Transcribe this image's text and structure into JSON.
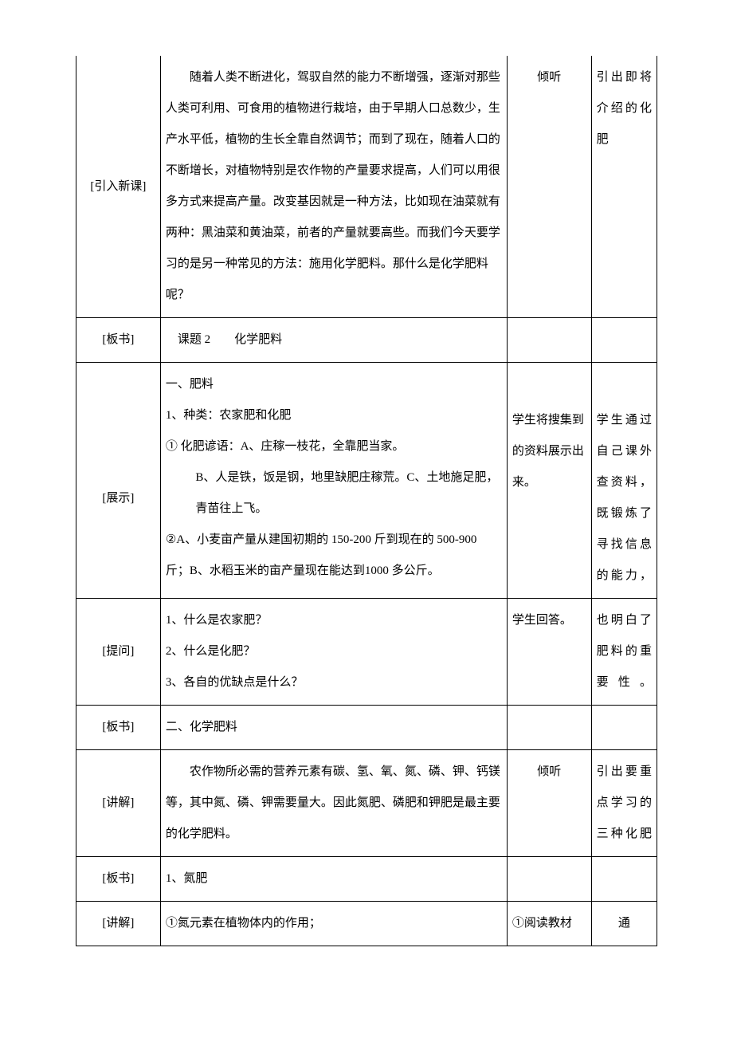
{
  "rows": [
    {
      "label": "[引入新课]",
      "content_paragraphs": [
        "随着人类不断进化，驾驭自然的能力不断增强，逐渐对那些人类可利用、可食用的植物进行栽培，由于早期人口总数少，生产水平低，植物的生长全靠自然调节；而到了现在，随着人口的不断增长，对植物特别是农作物的产量要求提高，人们可以用很多方式来提高产量。改变基因就是一种方法，比如现在油菜就有两种：黑油菜和黄油菜，前者的产量就要高些。而我们今天要学习的是另一种常见的方法：施用化学肥料。那什么是化学肥料呢？"
      ],
      "col3": "倾听",
      "col4": "引出即将介绍的化肥"
    },
    {
      "label": "[板书]",
      "content_title": "课题 2　　化学肥料"
    },
    {
      "label": "[展示]",
      "heading": "一、肥料",
      "line1": "1、种类：农家肥和化肥",
      "line2": "① 化肥谚语：A、庄稼一枝花，全靠肥当家。",
      "line3": "B、人是铁，饭是钢，地里缺肥庄稼荒。C、土地施足肥，青苗往上飞。",
      "line4": "②A、小麦亩产量从建国初期的 150-200 斤到现在的 500-900 斤；B、水稻玉米的亩产量现在能达到1000 多公斤。",
      "col3": "学生将搜集到的资料展示出来。",
      "col4": "学生通过自己课外查资料，既锻炼了寻找信息的能力，"
    },
    {
      "label": "[提问]",
      "q1": "1、什么是农家肥？",
      "q2": "2、什么是化肥？",
      "q3": "3、各自的优缺点是什么？",
      "col3": "学生回答。",
      "col4": "也明白了肥料的重要性。"
    },
    {
      "label": "[板书]",
      "content": "二、化学肥料"
    },
    {
      "label": "[讲解]",
      "content": "农作物所必需的营养元素有碳、氢、氧、氮、磷、钾、钙镁等，其中氮、磷、钾需要量大。因此氮肥、磷肥和钾肥是最主要的化学肥料。",
      "col3": "倾听",
      "col4": "引出要重点学习的三种化肥"
    },
    {
      "label": "[板书]",
      "content": "1、氮肥"
    },
    {
      "label": "[讲解]",
      "content": "①氮元素在植物体内的作用；",
      "col3": "①阅读教材",
      "col4": "通"
    }
  ]
}
